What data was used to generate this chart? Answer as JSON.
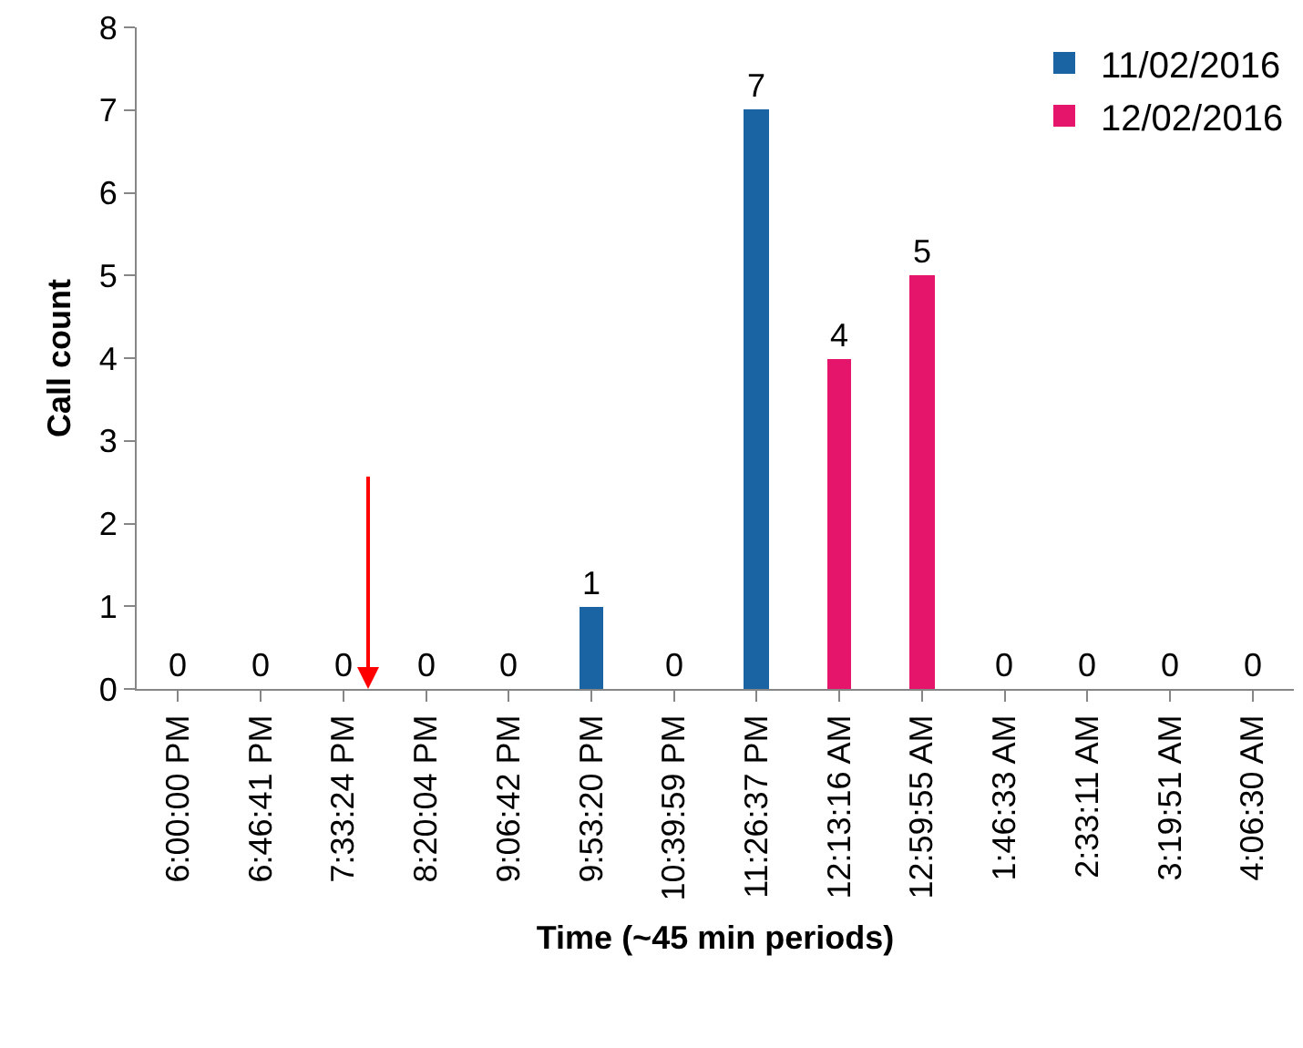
{
  "chart_data": {
    "type": "bar",
    "xlabel": "Time (~45 min periods)",
    "ylabel": "Call count",
    "categories": [
      "6:00:00 PM",
      "6:46:41 PM",
      "7:33:24 PM",
      "8:20:04 PM",
      "9:06:42 PM",
      "9:53:20 PM",
      "10:39:59 PM",
      "11:26:37 PM",
      "12:13:16 AM",
      "12:59:55 AM",
      "1:46:33 AM",
      "2:33:11 AM",
      "3:19:51 AM",
      "4:06:30 AM"
    ],
    "series": [
      {
        "name": "11/02/2016",
        "color": "#1b64a4",
        "values": [
          0,
          0,
          0,
          0,
          0,
          1,
          0,
          7,
          null,
          null,
          null,
          null,
          null,
          null
        ]
      },
      {
        "name": "12/02/2016",
        "color": "#e5156b",
        "values": [
          null,
          null,
          null,
          null,
          null,
          null,
          null,
          null,
          4,
          5,
          0,
          0,
          0,
          0
        ]
      }
    ],
    "ylim": [
      0,
      8
    ],
    "yticks": [
      0,
      1,
      2,
      3,
      4,
      5,
      6,
      7,
      8
    ],
    "grid": false,
    "legend": "top right",
    "data_labels": true
  }
}
